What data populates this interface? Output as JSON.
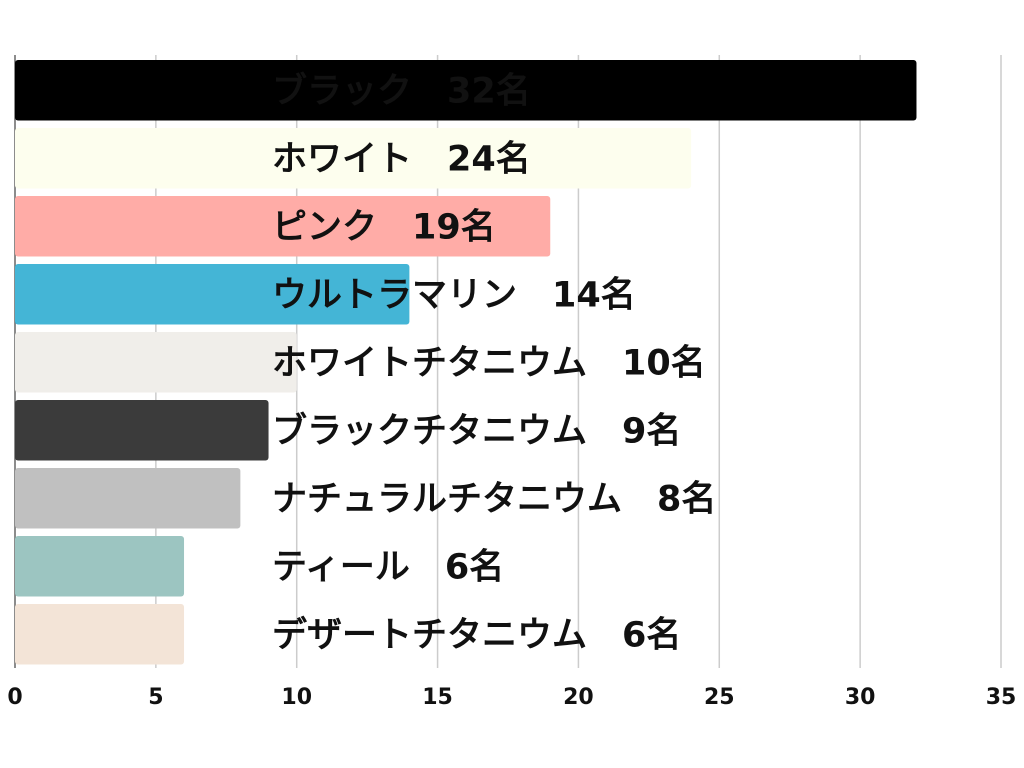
{
  "chart_data": {
    "type": "bar",
    "orientation": "horizontal",
    "categories": [
      "ブラック　32名",
      "ホワイト　24名",
      "ピンク　19名",
      "ウルトラマリン　14名",
      "ホワイトチタニウム　10名",
      "ブラックチタニウム　9名",
      "ナチュラルチタニウム　8名",
      "ティール　6名",
      "デザートチタニウム　6名"
    ],
    "values": [
      32,
      24,
      19,
      14,
      10,
      9,
      8,
      6,
      6
    ],
    "colors": [
      "#000000",
      "#fdfeee",
      "#ffaca7",
      "#44b5d6",
      "#f0eeea",
      "#3b3b3b",
      "#c0c0c0",
      "#9cc5c1",
      "#f3e4d7"
    ],
    "xlim": [
      0,
      35
    ],
    "xticks": [
      "0",
      "5",
      "10",
      "15",
      "20",
      "25",
      "30",
      "35"
    ],
    "grid": true,
    "title": "",
    "xlabel": "",
    "ylabel": ""
  }
}
